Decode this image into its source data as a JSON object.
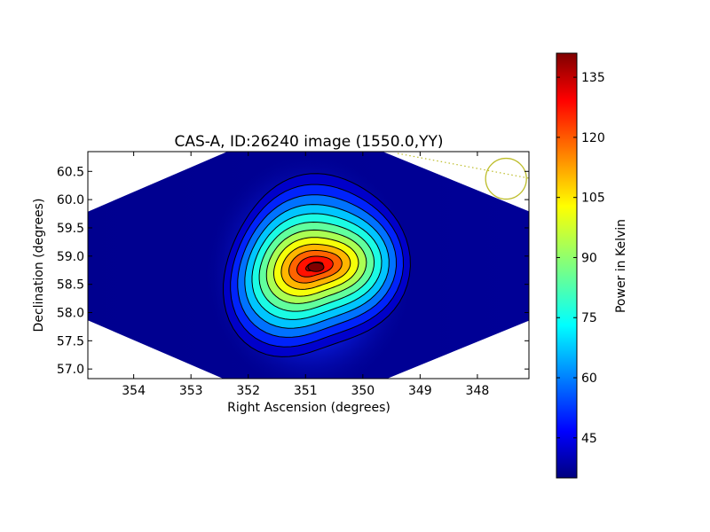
{
  "chart_data": {
    "type": "heatmap",
    "title": "CAS-A, ID:26240 image (1550.0,YY)",
    "xlabel": "Right Ascension (degrees)",
    "ylabel": "Declination (degrees)",
    "x_ticks": [
      354,
      353,
      352,
      351,
      350,
      349,
      348
    ],
    "x_tick_labels": [
      "354",
      "353",
      "352",
      "351",
      "350",
      "349",
      "348"
    ],
    "y_ticks": [
      57.0,
      57.5,
      58.0,
      58.5,
      59.0,
      59.5,
      60.0,
      60.5
    ],
    "y_tick_labels": [
      "57.0",
      "57.5",
      "58.0",
      "58.5",
      "59.0",
      "59.5",
      "60.0",
      "60.5"
    ],
    "xlim": [
      354.8,
      347.1
    ],
    "ylim": [
      56.83,
      60.85
    ],
    "x_axis_inverted": true,
    "grid": false,
    "colormap": "jet",
    "colorbar": {
      "label": "Power in Kelvin",
      "range": [
        35,
        141
      ],
      "ticks": [
        45,
        60,
        75,
        90,
        105,
        120,
        135
      ],
      "tick_labels": [
        "45",
        "60",
        "75",
        "90",
        "105",
        "120",
        "135"
      ],
      "placement": "right"
    },
    "source": {
      "name": "CAS-A",
      "peak_ra": 350.85,
      "peak_dec": 58.82,
      "peak_value": 141,
      "background_value": 36
    },
    "contour_count": 12,
    "beam_marker": {
      "ra": 347.5,
      "dec": 60.37,
      "color": "#bdbd2a"
    }
  }
}
